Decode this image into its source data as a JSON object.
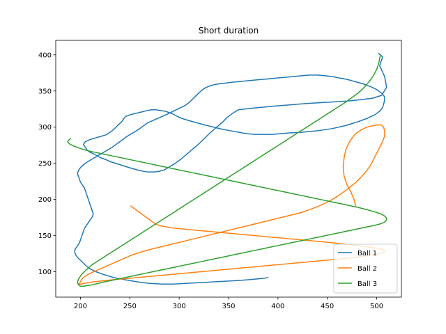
{
  "chart_data": {
    "type": "line",
    "title": "Short duration",
    "xlabel": "",
    "ylabel": "",
    "xlim": [
      175,
      525
    ],
    "ylim": [
      65,
      420
    ],
    "xticks": [
      200,
      250,
      300,
      350,
      400,
      450,
      500
    ],
    "yticks": [
      100,
      150,
      200,
      250,
      300,
      350,
      400
    ],
    "legend_position": "lower-right",
    "grid": false,
    "series": [
      {
        "name": "Ball 1",
        "color": "#1f77b4",
        "x": [
          502,
          506,
          503,
          508,
          510,
          505,
          496,
          484,
          470,
          458,
          445,
          433,
          422,
          414,
          405,
          395,
          388,
          380,
          372,
          366,
          360,
          355,
          349,
          344,
          338,
          332,
          326,
          320,
          314,
          308,
          302,
          296,
          290,
          285,
          280,
          275,
          268,
          260,
          252,
          245,
          238,
          231,
          226,
          220,
          215,
          210,
          207,
          205,
          203,
          205,
          210,
          215,
          220,
          225,
          228,
          230,
          233,
          236,
          239,
          242,
          244,
          246,
          250,
          256,
          262,
          268,
          272,
          276,
          281,
          286,
          290,
          294,
          298,
          303,
          310,
          318,
          326,
          335,
          344,
          352,
          360,
          368,
          377,
          386,
          395,
          402,
          412,
          425,
          440,
          455,
          468,
          480,
          490,
          498,
          503,
          506,
          507,
          508,
          508,
          505,
          500,
          494,
          486,
          478,
          470,
          462,
          455,
          448,
          440,
          432,
          424,
          416,
          408,
          400,
          392,
          384,
          376,
          368,
          360,
          353,
          347,
          341,
          336,
          331,
          326,
          322,
          319,
          316,
          313,
          310,
          306,
          300,
          294,
          288,
          283,
          278,
          273,
          268,
          265,
          262,
          258,
          253,
          248,
          244,
          240,
          236,
          232,
          227,
          222,
          217,
          212,
          207,
          203,
          200,
          198,
          197,
          198,
          199,
          200,
          202,
          204,
          205,
          206,
          207,
          208,
          209,
          210,
          211,
          212,
          213,
          212,
          210,
          208,
          206,
          204,
          203,
          202,
          201,
          200,
          199,
          197,
          195,
          194,
          195,
          197,
          200,
          203,
          206,
          210,
          216,
          224,
          234,
          245,
          258,
          270,
          282,
          294,
          306,
          320,
          334,
          347,
          360,
          370,
          378,
          385,
          390
        ],
        "y": [
          402,
          397,
          385,
          370,
          355,
          344,
          340,
          338,
          336,
          335,
          334,
          333,
          332,
          331,
          330,
          329,
          328,
          327,
          326,
          325,
          324,
          320,
          314,
          307,
          300,
          293,
          285,
          277,
          270,
          263,
          256,
          250,
          245,
          241,
          239,
          238,
          238,
          240,
          243,
          246,
          249,
          252,
          255,
          258,
          262,
          265,
          268,
          272,
          276,
          280,
          283,
          285,
          287,
          289,
          291,
          293,
          296,
          300,
          304,
          308,
          312,
          315,
          317,
          319,
          321,
          323,
          324,
          324,
          323,
          322,
          320,
          318,
          315,
          312,
          309,
          306,
          303,
          300,
          297,
          295,
          293,
          291,
          290,
          290,
          290,
          291,
          292,
          293,
          295,
          298,
          302,
          307,
          312,
          317,
          322,
          327,
          332,
          337,
          342,
          347,
          352,
          356,
          360,
          363,
          366,
          368,
          370,
          371,
          372,
          372,
          371,
          370,
          369,
          368,
          367,
          366,
          365,
          364,
          363,
          362,
          361,
          360,
          359,
          357,
          354,
          350,
          346,
          342,
          338,
          334,
          330,
          326,
          322,
          318,
          315,
          312,
          309,
          306,
          303,
          300,
          296,
          292,
          288,
          284,
          280,
          276,
          272,
          268,
          264,
          260,
          256,
          252,
          248,
          244,
          240,
          236,
          232,
          228,
          224,
          220,
          216,
          212,
          208,
          204,
          200,
          196,
          192,
          188,
          184,
          180,
          176,
          172,
          168,
          164,
          160,
          156,
          152,
          148,
          144,
          140,
          136,
          132,
          128,
          124,
          120,
          116,
          112,
          108,
          104,
          100,
          96,
          92,
          89,
          86,
          84,
          83,
          83,
          84,
          85,
          86,
          87,
          88,
          89,
          90,
          91,
          92
        ]
      },
      {
        "name": "Ball 2",
        "color": "#ff7f0e",
        "x": [
          479,
          477,
          474,
          470,
          467,
          466,
          467,
          469,
          473,
          478,
          484,
          490,
          496,
          500,
          502,
          505,
          507,
          508,
          508,
          506,
          503,
          500,
          497,
          494,
          490,
          485,
          480,
          474,
          468,
          462,
          455,
          448,
          440,
          432,
          424,
          415,
          406,
          397,
          388,
          379,
          370,
          361,
          352,
          343,
          334,
          325,
          316,
          307,
          298,
          289,
          280,
          271,
          263,
          256,
          250,
          245,
          240,
          235,
          230,
          225,
          220,
          215,
          210,
          206,
          203,
          201,
          200,
          199,
          198,
          199,
          201,
          204,
          208,
          213,
          219,
          226,
          233,
          241,
          249,
          257,
          265,
          273,
          281,
          289,
          297,
          305,
          313,
          321,
          329,
          337,
          345,
          353,
          361,
          369,
          377,
          385,
          393,
          401,
          409,
          417,
          425,
          433,
          441,
          449,
          457,
          465,
          472,
          478,
          484,
          489,
          494,
          498,
          502,
          505,
          507,
          508,
          508,
          507,
          505,
          502,
          498,
          493,
          488,
          482,
          476,
          470,
          463,
          456,
          449,
          441,
          433,
          425,
          417,
          409,
          401,
          393,
          385,
          377,
          369,
          361,
          353,
          345,
          337,
          329,
          321,
          313,
          305,
          298,
          292,
          287,
          283,
          280,
          278,
          276,
          275,
          274,
          273,
          272,
          271,
          270,
          269,
          268,
          267,
          266,
          265,
          264,
          263,
          262,
          261,
          260,
          259,
          258,
          257,
          256,
          255,
          254,
          253,
          252,
          251
        ],
        "y": [
          190,
          200,
          210,
          220,
          232,
          245,
          258,
          270,
          281,
          290,
          296,
          300,
          302,
          303,
          303,
          303,
          300,
          295,
          288,
          280,
          272,
          264,
          256,
          248,
          240,
          232,
          225,
          218,
          212,
          206,
          200,
          195,
          190,
          186,
          182,
          179,
          176,
          173,
          170,
          167,
          164,
          161,
          158,
          155,
          152,
          149,
          146,
          143,
          140,
          137,
          134,
          131,
          128,
          125,
          122,
          119,
          116,
          113,
          110,
          107,
          104,
          101,
          98,
          95,
          92,
          89,
          86,
          84,
          83,
          83,
          83,
          84,
          85,
          86,
          87,
          88,
          89,
          90,
          91,
          92,
          93,
          94,
          95,
          96,
          97,
          98,
          99,
          100,
          101,
          102,
          103,
          104,
          105,
          106,
          107,
          108,
          109,
          110,
          111,
          112,
          113,
          114,
          115,
          116,
          117,
          118,
          119,
          120,
          121,
          122,
          123,
          124,
          125,
          126,
          127,
          128,
          129,
          130,
          131,
          132,
          133,
          134,
          135,
          136,
          137,
          138,
          139,
          140,
          141,
          142,
          143,
          144,
          145,
          146,
          147,
          148,
          149,
          150,
          151,
          152,
          153,
          154,
          155,
          156,
          157,
          158,
          159,
          160,
          161,
          162,
          163,
          164,
          165,
          166,
          167,
          168,
          169,
          170,
          171,
          172,
          173,
          174,
          175,
          176,
          177,
          178,
          179,
          180,
          181,
          182,
          183,
          184,
          185,
          186,
          187,
          188,
          189,
          190,
          191
        ]
      },
      {
        "name": "Ball 3",
        "color": "#2ca02c",
        "x": [
          504,
          503,
          502,
          500,
          497,
          493,
          488,
          482,
          475,
          468,
          460,
          452,
          444,
          436,
          428,
          420,
          412,
          404,
          396,
          388,
          380,
          372,
          364,
          356,
          348,
          340,
          332,
          324,
          316,
          308,
          300,
          292,
          284,
          276,
          268,
          260,
          252,
          244,
          236,
          228,
          220,
          212,
          206,
          201,
          198,
          197,
          198,
          200,
          203,
          207,
          212,
          218,
          224,
          231,
          238,
          245,
          252,
          259,
          266,
          273,
          280,
          287,
          294,
          301,
          308,
          315,
          322,
          329,
          336,
          343,
          350,
          357,
          364,
          371,
          378,
          385,
          392,
          399,
          406,
          413,
          420,
          427,
          434,
          441,
          448,
          455,
          462,
          469,
          476,
          483,
          490,
          497,
          503,
          507,
          509,
          510,
          510,
          509,
          507,
          504,
          500,
          495,
          490,
          484,
          478,
          471,
          464,
          457,
          450,
          443,
          436,
          429,
          422,
          415,
          408,
          401,
          394,
          387,
          380,
          373,
          366,
          359,
          352,
          345,
          338,
          331,
          324,
          317,
          310,
          303,
          296,
          289,
          282,
          275,
          268,
          261,
          254,
          247,
          240,
          233,
          226,
          219,
          212,
          206,
          201,
          197,
          193,
          190,
          188,
          187,
          188,
          190
        ],
        "y": [
          400,
          395,
          388,
          380,
          372,
          364,
          356,
          348,
          341,
          334,
          327,
          320,
          313,
          306,
          299,
          292,
          285,
          278,
          271,
          264,
          257,
          250,
          243,
          236,
          229,
          222,
          215,
          208,
          201,
          194,
          187,
          180,
          173,
          166,
          159,
          152,
          145,
          138,
          131,
          124,
          117,
          110,
          103,
          96,
          90,
          85,
          82,
          80,
          80,
          81,
          82,
          84,
          86,
          88,
          90,
          92,
          94,
          96,
          98,
          100,
          102,
          104,
          106,
          108,
          110,
          112,
          114,
          116,
          118,
          120,
          122,
          124,
          126,
          128,
          130,
          132,
          134,
          136,
          138,
          140,
          142,
          144,
          146,
          148,
          150,
          152,
          154,
          156,
          158,
          160,
          162,
          164,
          166,
          168,
          170,
          172,
          174,
          176,
          178,
          180,
          182,
          184,
          186,
          188,
          190,
          192,
          194,
          196,
          198,
          200,
          202,
          204,
          206,
          208,
          210,
          212,
          214,
          216,
          218,
          220,
          222,
          224,
          226,
          228,
          230,
          232,
          234,
          236,
          238,
          240,
          242,
          244,
          246,
          248,
          250,
          252,
          254,
          256,
          258,
          260,
          262,
          264,
          266,
          268,
          270,
          272,
          274,
          276,
          278,
          280,
          282,
          284
        ]
      }
    ]
  }
}
